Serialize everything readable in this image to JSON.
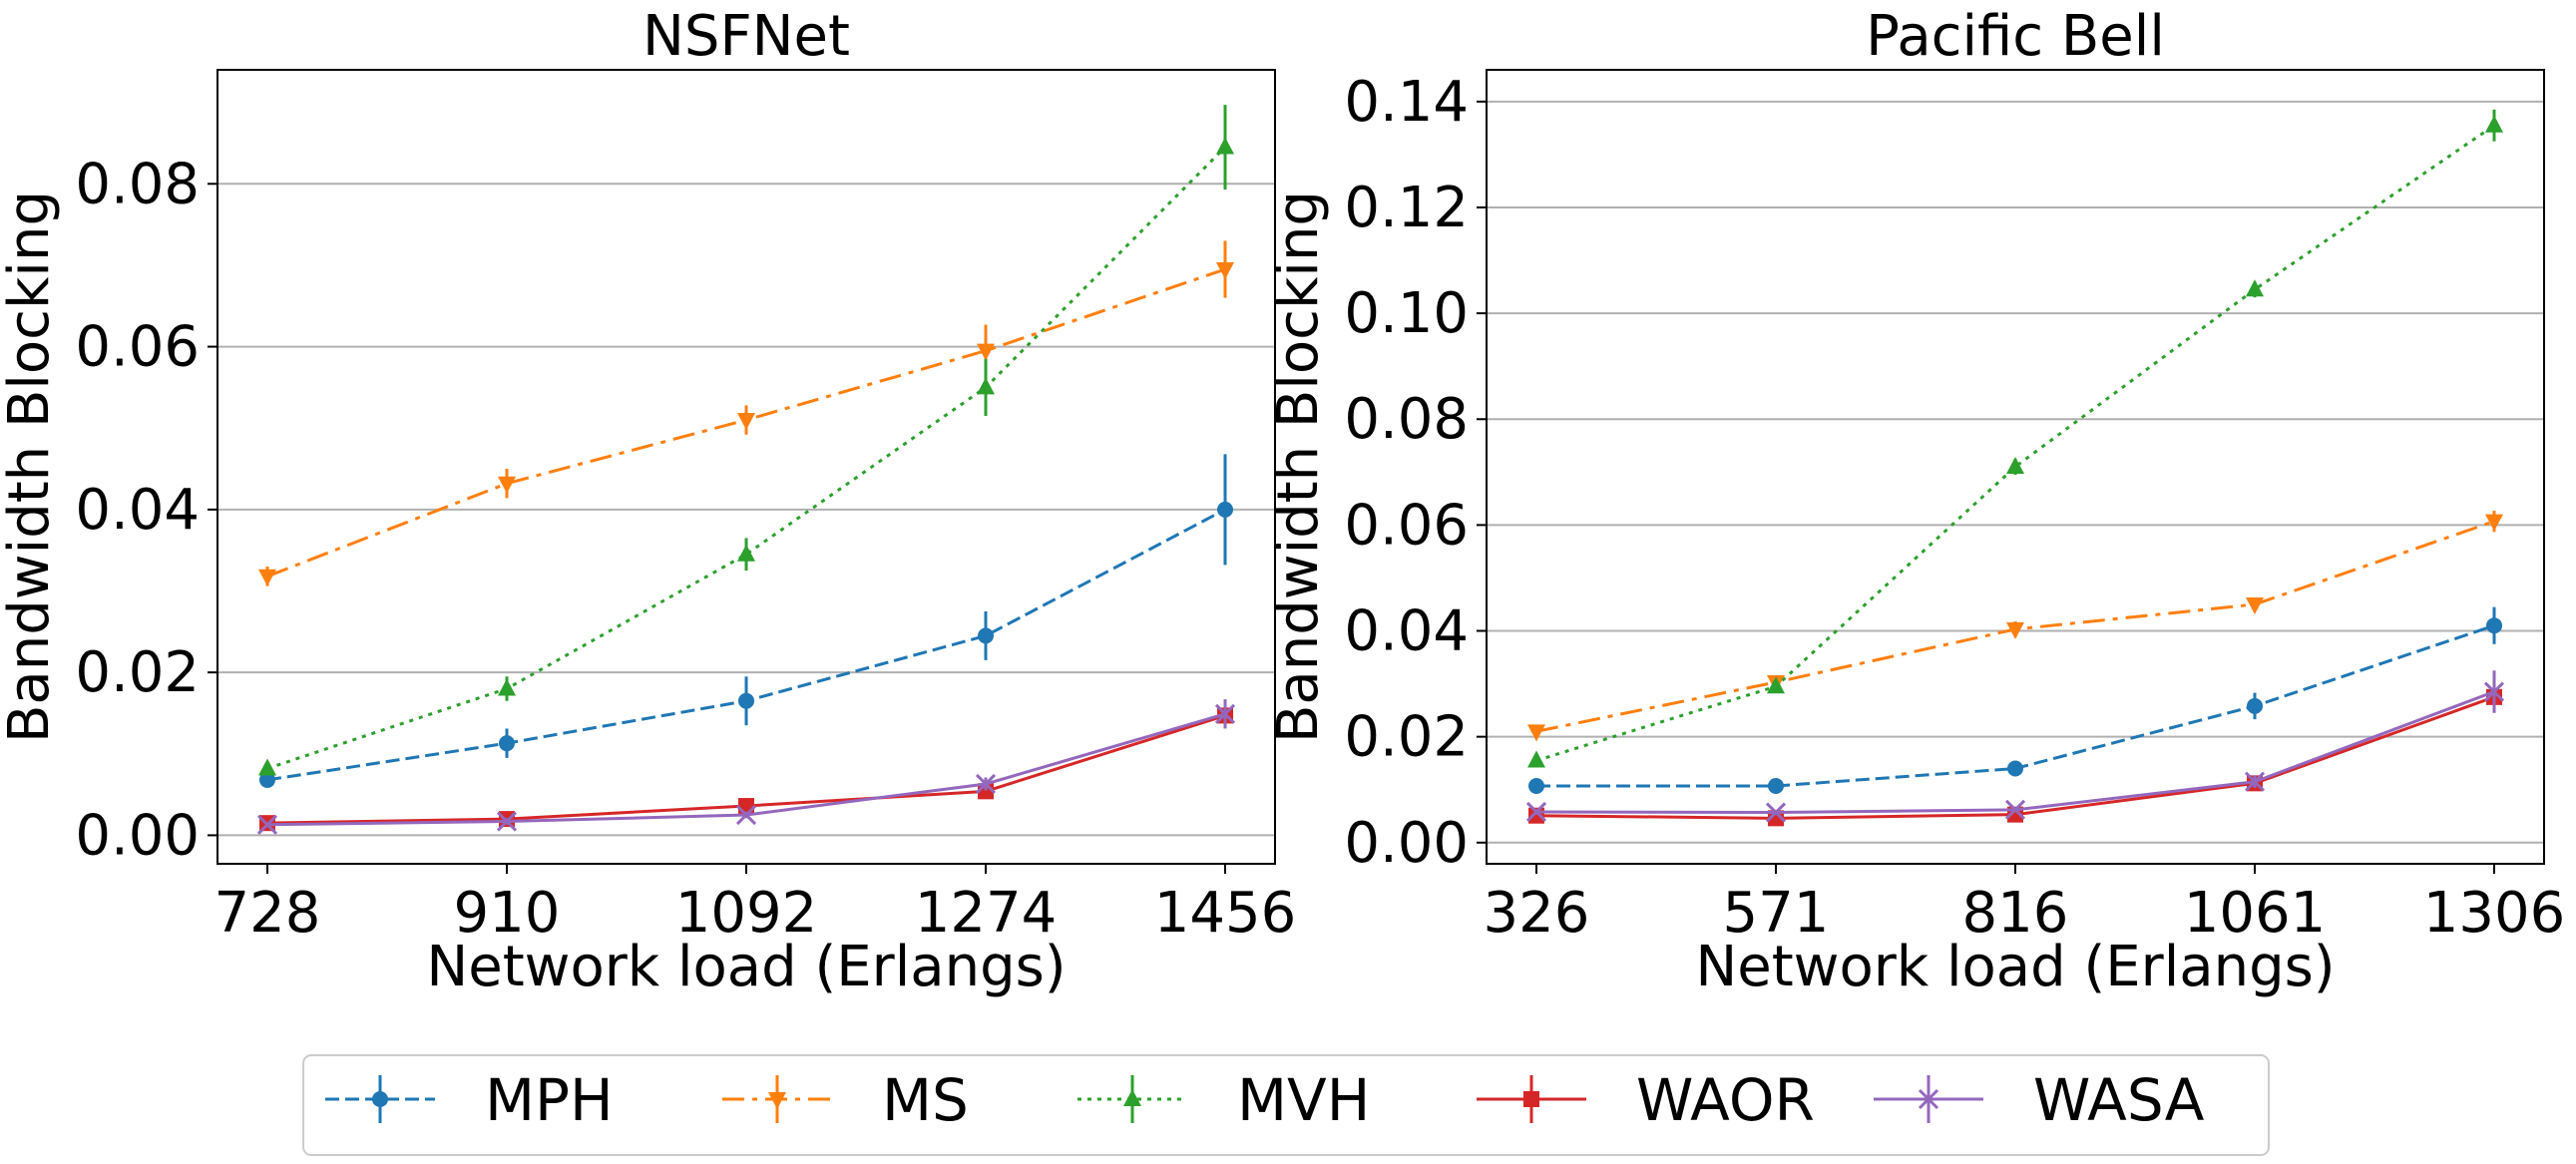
{
  "chart_data": [
    {
      "type": "line",
      "title": "NSFNet",
      "xlabel": "Network load (Erlangs)",
      "ylabel": "Bandwidth Blocking",
      "categories": [
        "728",
        "910",
        "1092",
        "1274",
        "1456"
      ],
      "ylim": [
        -0.0035,
        0.094
      ],
      "yticks": [
        "0.00",
        "0.02",
        "0.04",
        "0.06",
        "0.08"
      ],
      "ytick_values": [
        0,
        0.02,
        0.04,
        0.06,
        0.08
      ],
      "grid": "y-major",
      "series": [
        {
          "name": "MPH",
          "values": [
            0.0068,
            0.0113,
            0.0165,
            0.0245,
            0.04
          ],
          "errors": [
            0.0008,
            0.0018,
            0.003,
            0.003,
            0.0068
          ]
        },
        {
          "name": "MS",
          "values": [
            0.0318,
            0.0432,
            0.051,
            0.0595,
            0.0695
          ],
          "errors": [
            0.0012,
            0.0018,
            0.0018,
            0.0032,
            0.0035
          ]
        },
        {
          "name": "MVH",
          "values": [
            0.0082,
            0.018,
            0.0345,
            0.055,
            0.0845
          ],
          "errors": [
            0.0006,
            0.0015,
            0.002,
            0.0035,
            0.0052
          ]
        },
        {
          "name": "WAOR",
          "values": [
            0.0015,
            0.002,
            0.0036,
            0.0054,
            0.0147
          ],
          "errors": [
            0.0003,
            0.0003,
            0.0004,
            0.0006,
            0.0015
          ]
        },
        {
          "name": "WASA",
          "values": [
            0.0013,
            0.0017,
            0.0025,
            0.0063,
            0.0149
          ],
          "errors": [
            0.0003,
            0.0004,
            0.0004,
            0.0008,
            0.0018
          ]
        }
      ]
    },
    {
      "type": "line",
      "title": "Pacific Bell",
      "xlabel": "Network load (Erlangs)",
      "ylabel": "Bandwidth Blocking",
      "categories": [
        "326",
        "571",
        "816",
        "1061",
        "1306"
      ],
      "ylim": [
        -0.004,
        0.146
      ],
      "yticks": [
        "0.00",
        "0.02",
        "0.04",
        "0.06",
        "0.08",
        "0.10",
        "0.12",
        "0.14"
      ],
      "ytick_values": [
        0,
        0.02,
        0.04,
        0.06,
        0.08,
        0.1,
        0.12,
        0.14
      ],
      "grid": "y-major",
      "series": [
        {
          "name": "MPH",
          "values": [
            0.0107,
            0.0107,
            0.014,
            0.0258,
            0.041
          ],
          "errors": [
            0.0007,
            0.0007,
            0.001,
            0.0025,
            0.0035
          ]
        },
        {
          "name": "MS",
          "values": [
            0.021,
            0.0303,
            0.0403,
            0.045,
            0.0607
          ],
          "errors": [
            0.0009,
            0.001,
            0.0015,
            0.0012,
            0.002
          ]
        },
        {
          "name": "MVH",
          "values": [
            0.0155,
            0.0295,
            0.071,
            0.1045,
            0.1355
          ],
          "errors": [
            0.0007,
            0.0012,
            0.0015,
            0.0015,
            0.003
          ]
        },
        {
          "name": "WAOR",
          "values": [
            0.0051,
            0.0046,
            0.0053,
            0.0112,
            0.0275
          ],
          "errors": [
            0.0005,
            0.0005,
            0.0005,
            0.0012,
            0.0022
          ]
        },
        {
          "name": "WASA",
          "values": [
            0.0058,
            0.0057,
            0.0062,
            0.0115,
            0.0285
          ],
          "errors": [
            0.0005,
            0.0005,
            0.0005,
            0.0012,
            0.004
          ]
        }
      ]
    }
  ],
  "legend": {
    "placement": "bottom-center",
    "items": [
      {
        "name": "MPH",
        "color": "#1f77b4",
        "dash": "dashed",
        "marker": "circle"
      },
      {
        "name": "MS",
        "color": "#ff7f0e",
        "dash": "dashdot",
        "marker": "triangle-down"
      },
      {
        "name": "MVH",
        "color": "#2ca02c",
        "dash": "dotted",
        "marker": "triangle-up"
      },
      {
        "name": "WAOR",
        "color": "#d62728",
        "dash": "solid",
        "marker": "square"
      },
      {
        "name": "WASA",
        "color": "#9467bd",
        "dash": "solid",
        "marker": "x"
      }
    ]
  }
}
